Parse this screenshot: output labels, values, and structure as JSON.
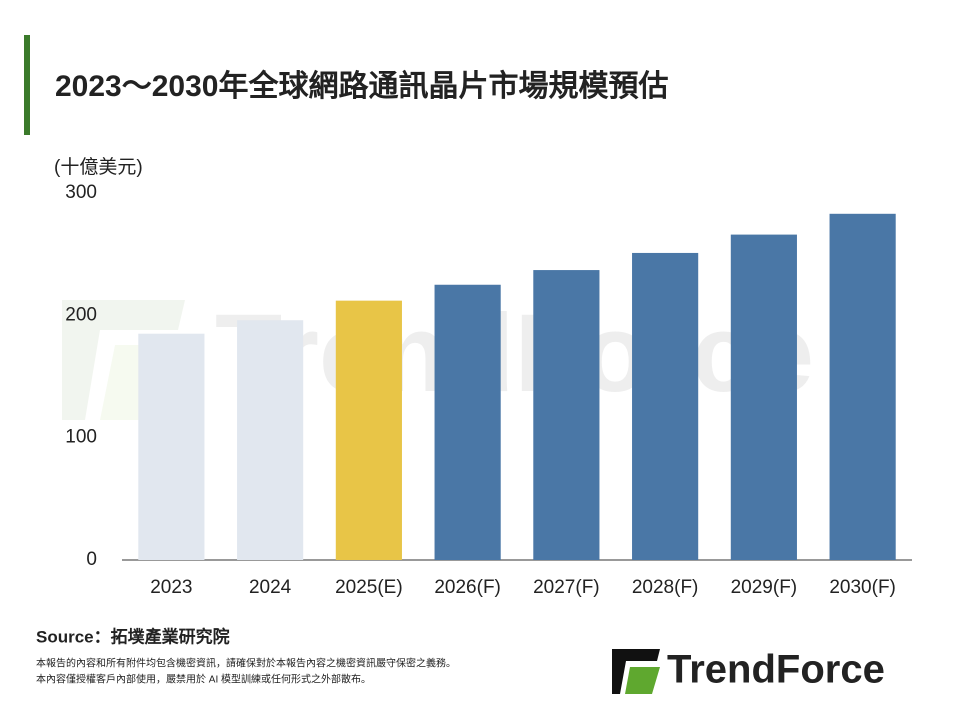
{
  "chart_data": {
    "type": "bar",
    "title": "2023～2030年全球網路通訊晶片市場規模預估",
    "y_label": "(十億美元)",
    "categories": [
      "2023",
      "2024",
      "2025(E)",
      "2026(F)",
      "2027(F)",
      "2028(F)",
      "2029(F)",
      "2030(F)"
    ],
    "values": [
      185,
      196,
      212,
      225,
      237,
      251,
      266,
      283
    ],
    "colors": [
      "#e1e7ef",
      "#e1e7ef",
      "#e8c547",
      "#4a77a6",
      "#4a77a6",
      "#4a77a6",
      "#4a77a6",
      "#4a77a6"
    ],
    "ylim": [
      0,
      300
    ],
    "yticks": [
      0,
      100,
      200,
      300
    ],
    "grid": false,
    "source": "Source：拓墣產業研究院",
    "notes": [
      "本報告的內容和所有附件均包含機密資訊，請確保對於本報告內容之機密資訊嚴守保密之義務。",
      "本內容僅授權客戶內部使用，嚴禁用於 AI 模型訓練或任何形式之外部散布。"
    ],
    "brand": "TrendForce"
  }
}
